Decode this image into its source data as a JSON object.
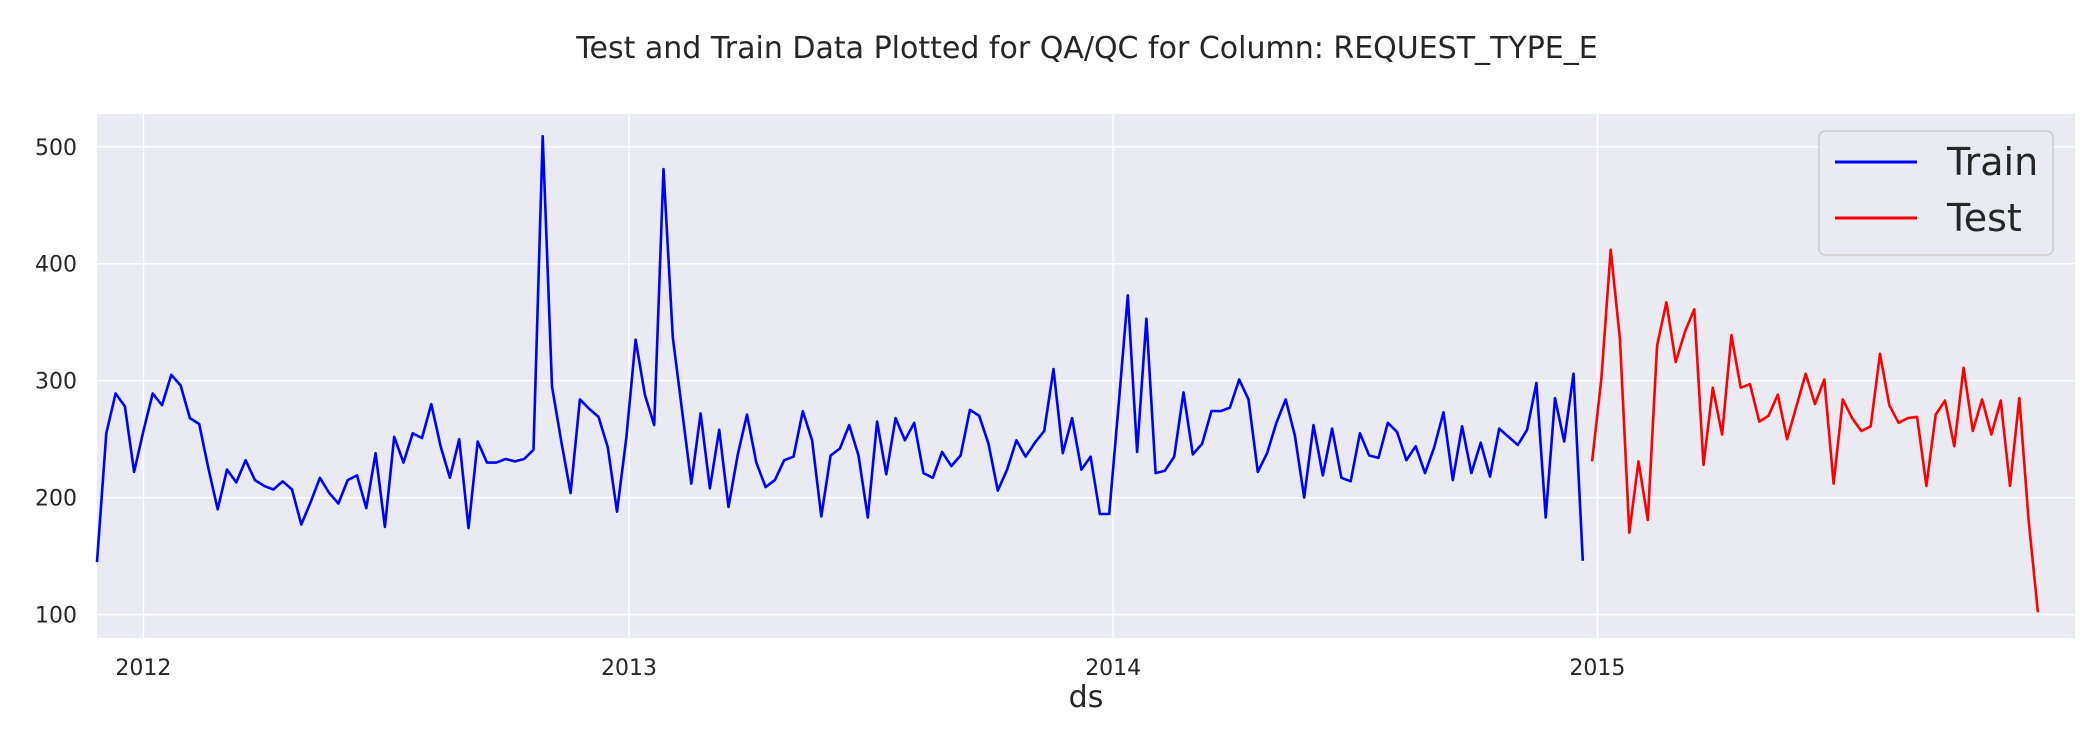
{
  "chart_data": {
    "type": "line",
    "title": "Test and Train Data Plotted for QA/QC for Column: REQUEST_TYPE_E",
    "xlabel": "ds",
    "ylabel": "",
    "x_ticks": [
      "2012",
      "2013",
      "2014",
      "2015"
    ],
    "y_ticks": [
      100,
      200,
      300,
      400,
      500
    ],
    "xlim": [
      "2011-11-27",
      "2015-12-27"
    ],
    "ylim": [
      80,
      528
    ],
    "grid": true,
    "legend_position": "top-right",
    "colors": {
      "background": "#eaeaf2",
      "grid": "#ffffff",
      "train": "#0000ff",
      "test": "#ff0000"
    },
    "series": [
      {
        "name": "Train",
        "color": "#0000ff",
        "points": [
          [
            "2011-11-27",
            145
          ],
          [
            "2011-12-04",
            255
          ],
          [
            "2011-12-11",
            289
          ],
          [
            "2011-12-18",
            278
          ],
          [
            "2011-12-25",
            222
          ],
          [
            "2012-01-01",
            257
          ],
          [
            "2012-01-08",
            289
          ],
          [
            "2012-01-15",
            279
          ],
          [
            "2012-01-22",
            305
          ],
          [
            "2012-01-29",
            296
          ],
          [
            "2012-02-05",
            268
          ],
          [
            "2012-02-12",
            263
          ],
          [
            "2012-02-19",
            225
          ],
          [
            "2012-02-26",
            190
          ],
          [
            "2012-03-04",
            224
          ],
          [
            "2012-03-11",
            213
          ],
          [
            "2012-03-18",
            232
          ],
          [
            "2012-03-25",
            215
          ],
          [
            "2012-04-01",
            210
          ],
          [
            "2012-04-08",
            207
          ],
          [
            "2012-04-15",
            214
          ],
          [
            "2012-04-22",
            207
          ],
          [
            "2012-04-29",
            177
          ],
          [
            "2012-05-06",
            196
          ],
          [
            "2012-05-13",
            217
          ],
          [
            "2012-05-20",
            204
          ],
          [
            "2012-05-27",
            195
          ],
          [
            "2012-06-03",
            215
          ],
          [
            "2012-06-10",
            219
          ],
          [
            "2012-06-17",
            191
          ],
          [
            "2012-06-24",
            238
          ],
          [
            "2012-07-01",
            175
          ],
          [
            "2012-07-08",
            252
          ],
          [
            "2012-07-15",
            230
          ],
          [
            "2012-07-22",
            255
          ],
          [
            "2012-07-29",
            251
          ],
          [
            "2012-08-05",
            280
          ],
          [
            "2012-08-12",
            244
          ],
          [
            "2012-08-19",
            217
          ],
          [
            "2012-08-26",
            250
          ],
          [
            "2012-09-02",
            174
          ],
          [
            "2012-09-09",
            248
          ],
          [
            "2012-09-16",
            230
          ],
          [
            "2012-09-23",
            230
          ],
          [
            "2012-09-30",
            233
          ],
          [
            "2012-10-07",
            231
          ],
          [
            "2012-10-14",
            233
          ],
          [
            "2012-10-21",
            241
          ],
          [
            "2012-10-28",
            509
          ],
          [
            "2012-11-04",
            295
          ],
          [
            "2012-11-11",
            248
          ],
          [
            "2012-11-18",
            204
          ],
          [
            "2012-11-25",
            284
          ],
          [
            "2012-12-02",
            276
          ],
          [
            "2012-12-09",
            269
          ],
          [
            "2012-12-16",
            243
          ],
          [
            "2012-12-23",
            188
          ],
          [
            "2012-12-30",
            251
          ],
          [
            "2013-01-06",
            335
          ],
          [
            "2013-01-13",
            288
          ],
          [
            "2013-01-20",
            262
          ],
          [
            "2013-01-27",
            481
          ],
          [
            "2013-02-03",
            337
          ],
          [
            "2013-02-10",
            275
          ],
          [
            "2013-02-17",
            212
          ],
          [
            "2013-02-24",
            272
          ],
          [
            "2013-03-03",
            208
          ],
          [
            "2013-03-10",
            258
          ],
          [
            "2013-03-17",
            192
          ],
          [
            "2013-03-24",
            237
          ],
          [
            "2013-03-31",
            271
          ],
          [
            "2013-04-07",
            230
          ],
          [
            "2013-04-14",
            209
          ],
          [
            "2013-04-21",
            215
          ],
          [
            "2013-04-28",
            232
          ],
          [
            "2013-05-05",
            235
          ],
          [
            "2013-05-12",
            274
          ],
          [
            "2013-05-19",
            249
          ],
          [
            "2013-05-26",
            184
          ],
          [
            "2013-06-02",
            236
          ],
          [
            "2013-06-09",
            242
          ],
          [
            "2013-06-16",
            262
          ],
          [
            "2013-06-23",
            236
          ],
          [
            "2013-06-30",
            183
          ],
          [
            "2013-07-07",
            265
          ],
          [
            "2013-07-14",
            220
          ],
          [
            "2013-07-21",
            268
          ],
          [
            "2013-07-28",
            249
          ],
          [
            "2013-08-04",
            264
          ],
          [
            "2013-08-11",
            221
          ],
          [
            "2013-08-18",
            217
          ],
          [
            "2013-08-25",
            239
          ],
          [
            "2013-09-01",
            227
          ],
          [
            "2013-09-08",
            236
          ],
          [
            "2013-09-15",
            275
          ],
          [
            "2013-09-22",
            270
          ],
          [
            "2013-09-29",
            246
          ],
          [
            "2013-10-06",
            206
          ],
          [
            "2013-10-13",
            224
          ],
          [
            "2013-10-20",
            249
          ],
          [
            "2013-10-27",
            235
          ],
          [
            "2013-11-03",
            247
          ],
          [
            "2013-11-10",
            257
          ],
          [
            "2013-11-17",
            310
          ],
          [
            "2013-11-24",
            238
          ],
          [
            "2013-12-01",
            268
          ],
          [
            "2013-12-08",
            224
          ],
          [
            "2013-12-15",
            235
          ],
          [
            "2013-12-22",
            186
          ],
          [
            "2013-12-29",
            186
          ],
          [
            "2014-01-05",
            278
          ],
          [
            "2014-01-12",
            373
          ],
          [
            "2014-01-19",
            239
          ],
          [
            "2014-01-26",
            353
          ],
          [
            "2014-02-02",
            221
          ],
          [
            "2014-02-09",
            223
          ],
          [
            "2014-02-16",
            235
          ],
          [
            "2014-02-23",
            290
          ],
          [
            "2014-03-02",
            237
          ],
          [
            "2014-03-09",
            246
          ],
          [
            "2014-03-16",
            274
          ],
          [
            "2014-03-23",
            274
          ],
          [
            "2014-03-30",
            277
          ],
          [
            "2014-04-06",
            301
          ],
          [
            "2014-04-13",
            284
          ],
          [
            "2014-04-20",
            222
          ],
          [
            "2014-04-27",
            238
          ],
          [
            "2014-05-04",
            264
          ],
          [
            "2014-05-11",
            284
          ],
          [
            "2014-05-18",
            253
          ],
          [
            "2014-05-25",
            200
          ],
          [
            "2014-06-01",
            262
          ],
          [
            "2014-06-08",
            219
          ],
          [
            "2014-06-15",
            259
          ],
          [
            "2014-06-22",
            217
          ],
          [
            "2014-06-29",
            214
          ],
          [
            "2014-07-06",
            255
          ],
          [
            "2014-07-13",
            236
          ],
          [
            "2014-07-20",
            234
          ],
          [
            "2014-07-27",
            264
          ],
          [
            "2014-08-03",
            256
          ],
          [
            "2014-08-10",
            232
          ],
          [
            "2014-08-17",
            244
          ],
          [
            "2014-08-24",
            221
          ],
          [
            "2014-08-31",
            243
          ],
          [
            "2014-09-07",
            273
          ],
          [
            "2014-09-14",
            215
          ],
          [
            "2014-09-21",
            261
          ],
          [
            "2014-09-28",
            221
          ],
          [
            "2014-10-05",
            247
          ],
          [
            "2014-10-12",
            218
          ],
          [
            "2014-10-19",
            259
          ],
          [
            "2014-10-26",
            252
          ],
          [
            "2014-11-02",
            245
          ],
          [
            "2014-11-09",
            258
          ],
          [
            "2014-11-16",
            298
          ],
          [
            "2014-11-23",
            183
          ],
          [
            "2014-11-30",
            285
          ],
          [
            "2014-12-07",
            248
          ],
          [
            "2014-12-14",
            306
          ],
          [
            "2014-12-21",
            146
          ]
        ]
      },
      {
        "name": "Test",
        "color": "#ff0000",
        "points": [
          [
            "2014-12-28",
            231
          ],
          [
            "2015-01-04",
            302
          ],
          [
            "2015-01-11",
            412
          ],
          [
            "2015-01-18",
            335
          ],
          [
            "2015-01-25",
            170
          ],
          [
            "2015-02-01",
            231
          ],
          [
            "2015-02-08",
            181
          ],
          [
            "2015-02-15",
            330
          ],
          [
            "2015-02-22",
            367
          ],
          [
            "2015-03-01",
            316
          ],
          [
            "2015-03-08",
            342
          ],
          [
            "2015-03-15",
            361
          ],
          [
            "2015-03-22",
            228
          ],
          [
            "2015-03-29",
            294
          ],
          [
            "2015-04-05",
            254
          ],
          [
            "2015-04-12",
            339
          ],
          [
            "2015-04-19",
            294
          ],
          [
            "2015-04-26",
            297
          ],
          [
            "2015-05-03",
            265
          ],
          [
            "2015-05-10",
            270
          ],
          [
            "2015-05-17",
            288
          ],
          [
            "2015-05-24",
            250
          ],
          [
            "2015-05-31",
            278
          ],
          [
            "2015-06-07",
            306
          ],
          [
            "2015-06-14",
            280
          ],
          [
            "2015-06-21",
            301
          ],
          [
            "2015-06-28",
            212
          ],
          [
            "2015-07-05",
            284
          ],
          [
            "2015-07-12",
            268
          ],
          [
            "2015-07-19",
            257
          ],
          [
            "2015-07-26",
            261
          ],
          [
            "2015-08-02",
            323
          ],
          [
            "2015-08-09",
            279
          ],
          [
            "2015-08-16",
            264
          ],
          [
            "2015-08-23",
            268
          ],
          [
            "2015-08-30",
            269
          ],
          [
            "2015-09-06",
            210
          ],
          [
            "2015-09-13",
            271
          ],
          [
            "2015-09-20",
            283
          ],
          [
            "2015-09-27",
            244
          ],
          [
            "2015-10-04",
            311
          ],
          [
            "2015-10-11",
            257
          ],
          [
            "2015-10-18",
            284
          ],
          [
            "2015-10-25",
            254
          ],
          [
            "2015-11-01",
            283
          ],
          [
            "2015-11-08",
            210
          ],
          [
            "2015-11-15",
            285
          ],
          [
            "2015-11-22",
            181
          ],
          [
            "2015-11-29",
            102
          ]
        ]
      }
    ]
  }
}
